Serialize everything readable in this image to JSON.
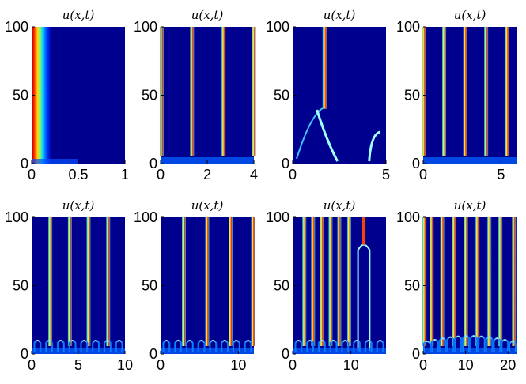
{
  "colors": {
    "background": "#00008f",
    "colormap": "jet"
  },
  "chart_data": [
    {
      "type": "heatmap",
      "title": "u(x,t)",
      "xlim": [
        0,
        1
      ],
      "ylim": [
        0,
        100
      ],
      "xticks": [
        "0",
        "0.5",
        "1"
      ],
      "yticks": [
        "0",
        "50",
        "100"
      ]
    },
    {
      "type": "heatmap",
      "title": "u(x,t)",
      "xlim": [
        0,
        4
      ],
      "ylim": [
        0,
        100
      ],
      "xticks": [
        "0",
        "2",
        "4"
      ],
      "yticks": [
        "0",
        "50",
        "100"
      ]
    },
    {
      "type": "heatmap",
      "title": "u(x,t)",
      "xlim": [
        0,
        5
      ],
      "ylim": [
        0,
        100
      ],
      "xticks": [
        "0",
        "5"
      ],
      "yticks": [
        "0",
        "50",
        "100"
      ]
    },
    {
      "type": "heatmap",
      "title": "u(x,t)",
      "xlim": [
        0,
        6
      ],
      "ylim": [
        0,
        100
      ],
      "xticks": [
        "0",
        "5"
      ],
      "yticks": [
        "0",
        "50",
        "100"
      ]
    },
    {
      "type": "heatmap",
      "title": "u(x,t)",
      "xlim": [
        0,
        10
      ],
      "ylim": [
        0,
        100
      ],
      "xticks": [
        "0",
        "5",
        "10"
      ],
      "yticks": [
        "0",
        "50",
        "100"
      ]
    },
    {
      "type": "heatmap",
      "title": "u(x,t)",
      "xlim": [
        0,
        12
      ],
      "ylim": [
        0,
        100
      ],
      "xticks": [
        "0",
        "10"
      ],
      "yticks": [
        "0",
        "50",
        "100"
      ]
    },
    {
      "type": "heatmap",
      "title": "u(x,t)",
      "xlim": [
        0,
        16
      ],
      "ylim": [
        0,
        100
      ],
      "xticks": [
        "0",
        "10"
      ],
      "yticks": [
        "0",
        "50",
        "100"
      ]
    },
    {
      "type": "heatmap",
      "title": "u(x,t)",
      "xlim": [
        0,
        22
      ],
      "ylim": [
        0,
        100
      ],
      "xticks": [
        "0",
        "10",
        "20"
      ],
      "yticks": [
        "0",
        "50",
        "100"
      ]
    }
  ]
}
